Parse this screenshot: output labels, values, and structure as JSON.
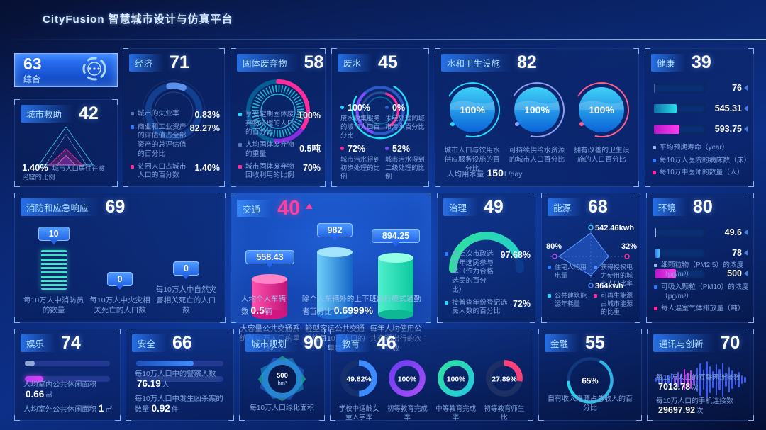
{
  "header": {
    "title": "CityFusion 智慧城市设计与仿真平台"
  },
  "panels": {
    "composite": {
      "label": "综合",
      "value": "63"
    },
    "city_aid": {
      "label": "城市救助",
      "value": "42",
      "stat_value": "1.40%",
      "stat_label": "城市人口居住在贫民窟的比例"
    },
    "economy": {
      "label": "经济",
      "value": "71",
      "items": [
        {
          "label": "城市的失业率",
          "value": "0.83%"
        },
        {
          "label": "商业和工业资产的评估值占全部资产的总评估值的百分比",
          "value": "82.27%"
        },
        {
          "label": "贫困人口占城市人口的百分数",
          "value": "1.40%"
        }
      ]
    },
    "solid_waste": {
      "label": "固体废弃物",
      "value": "58",
      "items": [
        {
          "label": "享受定期固体废弃物清理的人口的百分比",
          "value": "100%"
        },
        {
          "label": "人均固体废弃物的重量",
          "value": "0.5吨"
        },
        {
          "label": "城市固体废弃物回收利用的比例",
          "value": "70%"
        }
      ]
    },
    "wastewater": {
      "label": "废水",
      "value": "45",
      "items": [
        {
          "value": "100%",
          "label": "废水收集服务的城市人口百分比"
        },
        {
          "value": "0%",
          "label": "未经处理的城市污水百分比"
        },
        {
          "value": "72%",
          "label": "城市污水得到初步处理的比例"
        },
        {
          "value": "52%",
          "label": "城市污水得到二级处理的比例"
        }
      ]
    },
    "water_sanitation": {
      "label": "水和卫生设施",
      "value": "82",
      "gauges": [
        {
          "value": "100%",
          "label": "城市人口与饮用水供应服务设施的百分比"
        },
        {
          "value": "100%",
          "label": "可持续供给水资源的城市人口百分比"
        },
        {
          "value": "100%",
          "label": "拥有改善的卫生设施的人口百分比"
        }
      ],
      "stat_label": "人均用水量",
      "stat_value": "150",
      "stat_unit": "L/day"
    },
    "health": {
      "label": "健康",
      "value": "39",
      "bars": [
        {
          "value": "76",
          "label": "平均预期寿命（year）"
        },
        {
          "value": "545.31",
          "label": "每10万人医院的病床数（床）"
        },
        {
          "value": "593.75",
          "label": "每10万中医师的数量（人）"
        }
      ]
    },
    "fire_emergency": {
      "label": "消防和应急响应",
      "value": "69",
      "items": [
        {
          "value": "10",
          "label": "每10万人中消防员的数量"
        },
        {
          "value": "0",
          "label": "每10万人中火灾相关死亡的人口数"
        },
        {
          "value": "0",
          "label": "每10万人中自然灾害相关死亡的人口数"
        }
      ]
    },
    "traffic": {
      "label": "交通",
      "value": "40",
      "bars": [
        {
          "value": "558.43",
          "label": "大容量公共交通系统每10万人口的里程"
        },
        {
          "value": "982",
          "label": "轻型客运公共交通系统每10万人口的里程"
        },
        {
          "value": "894.25",
          "label": "每年人均使用公共交通出行的次数"
        }
      ],
      "stats": [
        {
          "label": "人均个人车辆数",
          "value": "0.5",
          "unit": "辆"
        },
        {
          "label": "除个人车辆外的上下班出行模式通勤者百分比",
          "value": "0.6999%",
          "unit": ""
        }
      ]
    },
    "governance": {
      "label": "治理",
      "value": "49",
      "items": [
        {
          "label": "在上次市政选举年选民参与率（作为合格选民的百分比）",
          "value": "97.68%"
        },
        {
          "label": "按普查年份登记选民人数的百分比",
          "value": "72%"
        }
      ]
    },
    "energy": {
      "label": "能源",
      "value": "68",
      "axis": {
        "top": "542.46kwh",
        "right": "32%",
        "bottom": "364kwh",
        "left": "80%"
      },
      "legend": [
        "住宅人均用电量",
        "获得授权电力使用的城市人口比率",
        "公共建筑能源年耗量",
        "可再生能源占城市能源的比重"
      ]
    },
    "environment": {
      "label": "环境",
      "value": "80",
      "bars": [
        {
          "value": "49.6",
          "label": "细颗粒物（PM2.5）的浓度（μg/m³）"
        },
        {
          "value": "78",
          "label": "可吸入颗粒（PM10）的浓度（μg/m³）"
        },
        {
          "value": "500",
          "label": "每人温室气体排放量（吨）"
        }
      ]
    },
    "recreation": {
      "label": "娱乐",
      "value": "74",
      "stats": [
        {
          "label": "人均室内公共休闲面积",
          "value": "0.66",
          "unit": "㎡"
        },
        {
          "label": "人均室外公共休闲面积",
          "value": "1",
          "unit": "㎡"
        }
      ]
    },
    "safety": {
      "label": "安全",
      "value": "66",
      "stats": [
        {
          "label": "每10万人口中的警察人数",
          "value": "76.19",
          "unit": "人"
        },
        {
          "label": "每10万人口中发生凶杀案的数量",
          "value": "0.92",
          "unit": "件"
        }
      ]
    },
    "urban_planning": {
      "label": "城市规划",
      "value": "90",
      "center_value": "500",
      "center_unit": "hm²",
      "stat_label": "每10万人口绿化面积"
    },
    "education": {
      "label": "教育",
      "value": "46",
      "rings": [
        {
          "value": "49.82%",
          "label": "学校中适龄女童入学率"
        },
        {
          "value": "100%",
          "label": "初等教育完成率"
        },
        {
          "value": "100%",
          "label": "中等教育完成率"
        },
        {
          "value": "27.89%",
          "label": "初等教育师生比"
        }
      ]
    },
    "finance": {
      "label": "金融",
      "value": "55",
      "center_value": "65%",
      "stat_label": "自有收入来源占总收入的百分比"
    },
    "communication": {
      "label": "通讯与创新",
      "value": "70",
      "stats": [
        {
          "label": "每10万人口的互联网连接数",
          "value": "7013.78",
          "unit": "次"
        },
        {
          "label": "每10万人口的手机连接数",
          "value": "29697.92",
          "unit": "次"
        }
      ]
    }
  },
  "colors": {
    "accent_cyan": "#25d8ff",
    "accent_magenta": "#ff2d9b",
    "accent_purple": "#7c4dff",
    "accent_green": "#2fe0a8",
    "accent_blue": "#2f7bff",
    "traffic_value": "#ff3f9e"
  }
}
